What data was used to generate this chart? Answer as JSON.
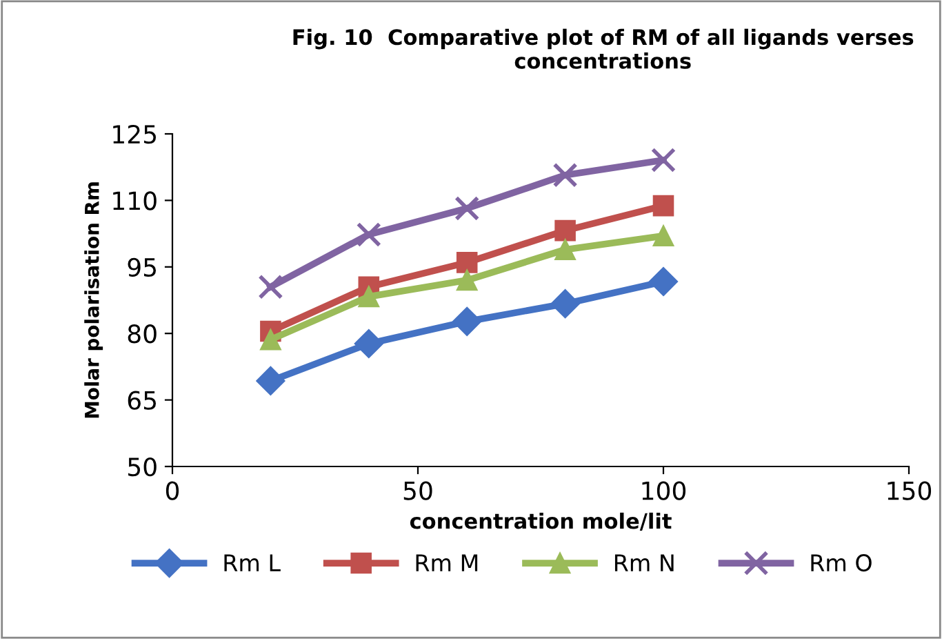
{
  "chart_data": {
    "type": "line",
    "title": "Fig. 10  Comparative plot of RM of all ligands verses\nconcentrations",
    "xlabel": "concentration mole/lit",
    "ylabel": "Molar polarisation Rm",
    "x": [
      20,
      40,
      60,
      80,
      100
    ],
    "series": [
      {
        "name": "Rm L",
        "color": "#4472c4",
        "marker": "diamond",
        "values": [
          69.3,
          77.7,
          82.7,
          86.7,
          91.7
        ]
      },
      {
        "name": "Rm M",
        "color": "#c0504d",
        "marker": "square",
        "values": [
          80.5,
          90.5,
          96,
          103.2,
          108.8
        ]
      },
      {
        "name": "Rm N",
        "color": "#9bbb59",
        "marker": "triangle",
        "values": [
          78.6,
          88.3,
          92,
          98.9,
          102
        ]
      },
      {
        "name": "Rm O",
        "color": "#8064a2",
        "marker": "cross",
        "values": [
          90.5,
          102.3,
          108.2,
          115.7,
          119.1
        ]
      }
    ],
    "xlim": [
      0,
      150
    ],
    "xticks": [
      0,
      50,
      100,
      150
    ],
    "ylim": [
      50,
      125
    ],
    "yticks": [
      50,
      65,
      80,
      95,
      110,
      125
    ],
    "grid": false,
    "legend": "bottom",
    "line_style": "solid"
  }
}
